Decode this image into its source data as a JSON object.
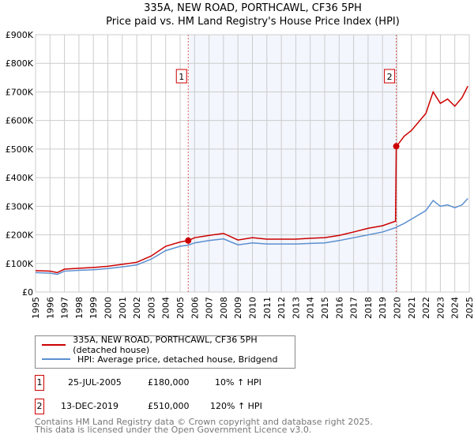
{
  "chart_data": {
    "type": "line",
    "title": "335A, NEW ROAD, PORTHCAWL, CF36 5PH",
    "subtitle": "Price paid vs. HM Land Registry's House Price Index (HPI)",
    "xlim": [
      1995,
      2025
    ],
    "ylim": [
      0,
      900000
    ],
    "x_ticks": [
      "1995",
      "1996",
      "1997",
      "1998",
      "1999",
      "2000",
      "2001",
      "2002",
      "2003",
      "2004",
      "2005",
      "2006",
      "2007",
      "2008",
      "2009",
      "2010",
      "2011",
      "2012",
      "2013",
      "2014",
      "2015",
      "2016",
      "2017",
      "2018",
      "2019",
      "2020",
      "2021",
      "2022",
      "2023",
      "2024",
      "2025"
    ],
    "y_ticks": [
      "£0",
      "£100K",
      "£200K",
      "£300K",
      "£400K",
      "£500K",
      "£600K",
      "£700K",
      "£800K",
      "£900K"
    ],
    "grid": true,
    "series": [
      {
        "name": "335A, NEW ROAD, PORTHCAWL, CF36 5PH (detached house)",
        "color": "#cc0000",
        "x": [
          1995,
          1996,
          1996.5,
          1997,
          1998,
          1999,
          2000,
          2001,
          2002,
          2003,
          2004,
          2005,
          2005.56,
          2006,
          2007,
          2008,
          2009,
          2010,
          2011,
          2012,
          2013,
          2014,
          2015,
          2016,
          2017,
          2018,
          2019,
          2019.9,
          2019.95,
          2020,
          2020.5,
          2021,
          2022,
          2022.5,
          2023,
          2023.5,
          2024,
          2024.5,
          2024.9
        ],
        "y": [
          75000,
          73000,
          68000,
          80000,
          83000,
          86000,
          90000,
          97000,
          104000,
          126000,
          160000,
          175000,
          180000,
          190000,
          198000,
          205000,
          182000,
          190000,
          185000,
          185000,
          185000,
          188000,
          190000,
          198000,
          210000,
          223000,
          232000,
          248000,
          510000,
          512000,
          545000,
          565000,
          625000,
          700000,
          660000,
          675000,
          650000,
          680000,
          720000
        ]
      },
      {
        "name": "HPI: Average price, detached house, Bridgend",
        "color": "#5b8fd0",
        "x": [
          1995,
          1996,
          1996.5,
          1997,
          1998,
          1999,
          2000,
          2001,
          2002,
          2003,
          2004,
          2005,
          2005.56,
          2006,
          2007,
          2008,
          2009,
          2010,
          2011,
          2012,
          2013,
          2014,
          2015,
          2016,
          2017,
          2018,
          2019,
          2019.9,
          2020,
          2020.5,
          2021,
          2022,
          2022.5,
          2023,
          2023.5,
          2024,
          2024.5,
          2024.9
        ],
        "y": [
          68000,
          66000,
          62000,
          73000,
          76000,
          78000,
          82000,
          88000,
          95000,
          115000,
          145000,
          160000,
          164000,
          172000,
          180000,
          186000,
          165000,
          172000,
          168000,
          168000,
          168000,
          170000,
          172000,
          180000,
          190000,
          200000,
          210000,
          225000,
          228000,
          240000,
          255000,
          285000,
          320000,
          300000,
          305000,
          295000,
          305000,
          327000
        ]
      }
    ],
    "annotations": [
      {
        "label": "1",
        "x": 2005.56,
        "y": 180000
      },
      {
        "label": "2",
        "x": 2019.95,
        "y": 510000
      }
    ]
  },
  "legend": {
    "red": "335A, NEW ROAD, PORTHCAWL, CF36 5PH (detached house)",
    "blue": "HPI: Average price, detached house, Bridgend"
  },
  "sales": [
    {
      "num": "1",
      "date": "25-JUL-2005",
      "price": "£180,000",
      "hpi": "10% ↑ HPI"
    },
    {
      "num": "2",
      "date": "13-DEC-2019",
      "price": "£510,000",
      "hpi": "120% ↑ HPI"
    }
  ],
  "footer": {
    "line1": "Contains HM Land Registry data © Crown copyright and database right 2025.",
    "line2": "This data is licensed under the Open Government Licence v3.0."
  }
}
